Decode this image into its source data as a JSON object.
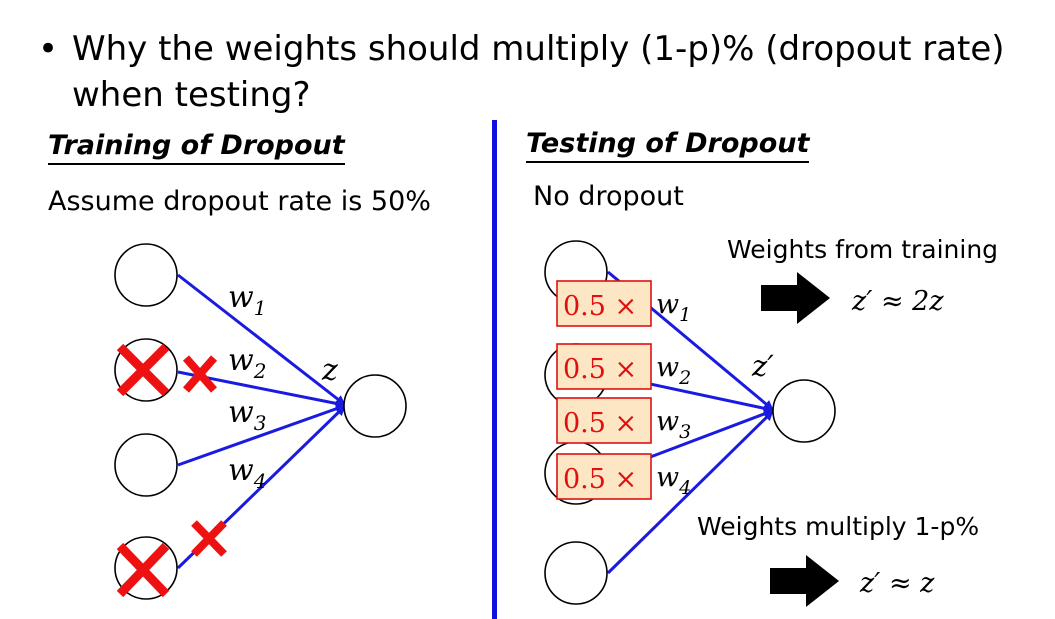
{
  "bullet": {
    "marker": "•",
    "text": "Why the weights should multiply (1-p)% (dropout rate) when testing?"
  },
  "training": {
    "heading": "Training of Dropout",
    "subtitle": "Assume dropout rate is 50%",
    "weights": [
      {
        "base": "w",
        "sub": "1"
      },
      {
        "base": "w",
        "sub": "2"
      },
      {
        "base": "w",
        "sub": "3"
      },
      {
        "base": "w",
        "sub": "4"
      }
    ],
    "output_label": "z",
    "dropped_inputs": [
      2,
      4
    ]
  },
  "testing": {
    "heading": "Testing of Dropout",
    "subtitle": "No dropout",
    "multiplier": "0.5 ×",
    "weights": [
      {
        "base": "w",
        "sub": "1"
      },
      {
        "base": "w",
        "sub": "2"
      },
      {
        "base": "w",
        "sub": "3"
      },
      {
        "base": "w",
        "sub": "4"
      }
    ],
    "output_label": "z′",
    "note_top": "Weights from training",
    "result_top": "z′ ≈ 2z",
    "note_bottom": "Weights multiply 1-p%",
    "result_bottom": "z′ ≈ z"
  },
  "colors": {
    "edge": "#1a1ae0",
    "cross": "#ee1111",
    "divider": "#1010dd",
    "box_fill": "#fde6c4",
    "box_border": "#e01010",
    "box_text": "#e01010",
    "arrow": "#000000"
  }
}
